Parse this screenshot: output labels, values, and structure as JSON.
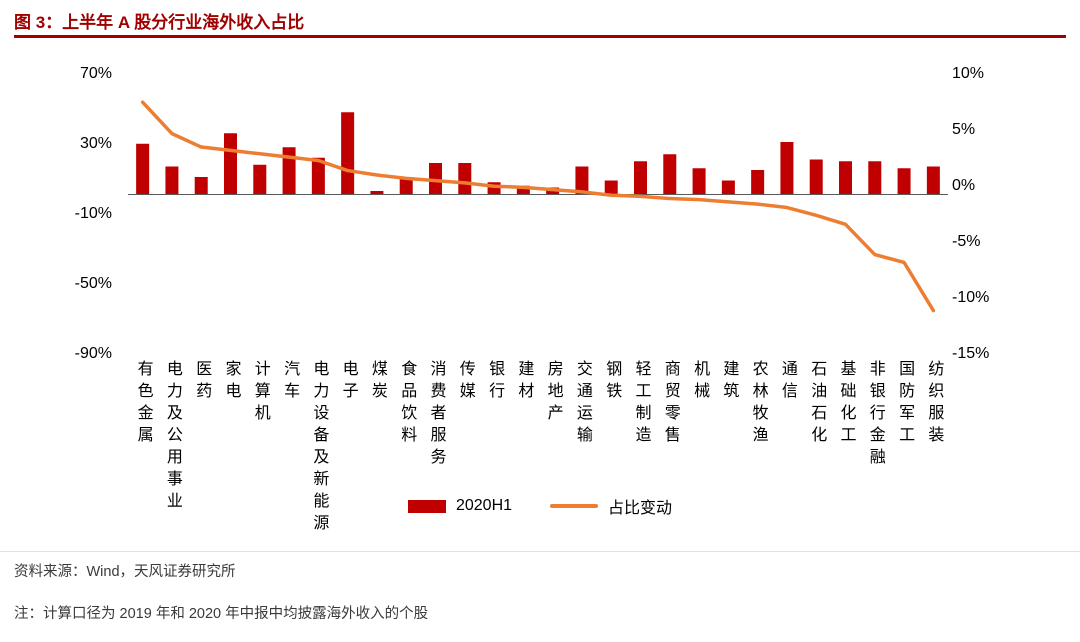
{
  "header": {
    "title": "图 3：上半年 A 股分行业海外收入占比"
  },
  "colors": {
    "title": "#A00000",
    "bar": "#C00000",
    "line": "#ED7D31",
    "zero_axis": "#595959"
  },
  "legend": {
    "bar_label": "2020H1",
    "line_label": "占比变动"
  },
  "footer": {
    "source": "资料来源：Wind，天风证券研究所",
    "note": "注：计算口径为 2019 年和 2020 年中报中均披露海外收入的个股"
  },
  "chart_data": {
    "type": "bar",
    "subtype": "bar-line combo, dual axis",
    "title": "上半年 A 股分行业海外收入占比",
    "categories": [
      "有色金属",
      "电力及公用事业",
      "医药",
      "家电",
      "计算机",
      "汽车",
      "电力设备及新能源",
      "电子",
      "煤炭",
      "食品饮料",
      "消费者服务",
      "传媒",
      "银行",
      "建材",
      "房地产",
      "交通运输",
      "钢铁",
      "轻工制造",
      "商贸零售",
      "机械",
      "建筑",
      "农林牧渔",
      "通信",
      "石油石化",
      "基础化工",
      "非银行金融",
      "国防军工",
      "纺织服装"
    ],
    "series": [
      {
        "name": "2020H1",
        "type": "bar",
        "axis": "left",
        "color": "#C00000",
        "values": [
          29,
          16,
          10,
          35,
          17,
          27,
          21,
          47,
          2,
          10,
          18,
          18,
          7,
          5,
          4,
          16,
          8,
          19,
          23,
          15,
          8,
          14,
          30,
          20,
          19,
          19,
          15,
          16
        ]
      },
      {
        "name": "占比变动",
        "type": "line",
        "axis": "right",
        "color": "#ED7D31",
        "values": [
          7.3,
          4.5,
          3.3,
          3.0,
          2.7,
          2.4,
          2.1,
          1.2,
          0.8,
          0.5,
          0.3,
          0.1,
          -0.2,
          -0.3,
          -0.5,
          -0.7,
          -1.0,
          -1.1,
          -1.3,
          -1.4,
          -1.6,
          -1.8,
          -2.1,
          -2.8,
          -3.6,
          -6.3,
          -7.0,
          -11.3
        ]
      }
    ],
    "left_axis": {
      "tick_values": [
        70,
        30,
        -10,
        -50,
        -90
      ],
      "min": -90,
      "max": 70,
      "unit": "%"
    },
    "right_axis": {
      "tick_values": [
        10,
        5,
        0,
        -5,
        -10,
        -15
      ],
      "min": -15,
      "max": 10,
      "unit": "%"
    },
    "grid": false,
    "legend_position": "bottom"
  }
}
